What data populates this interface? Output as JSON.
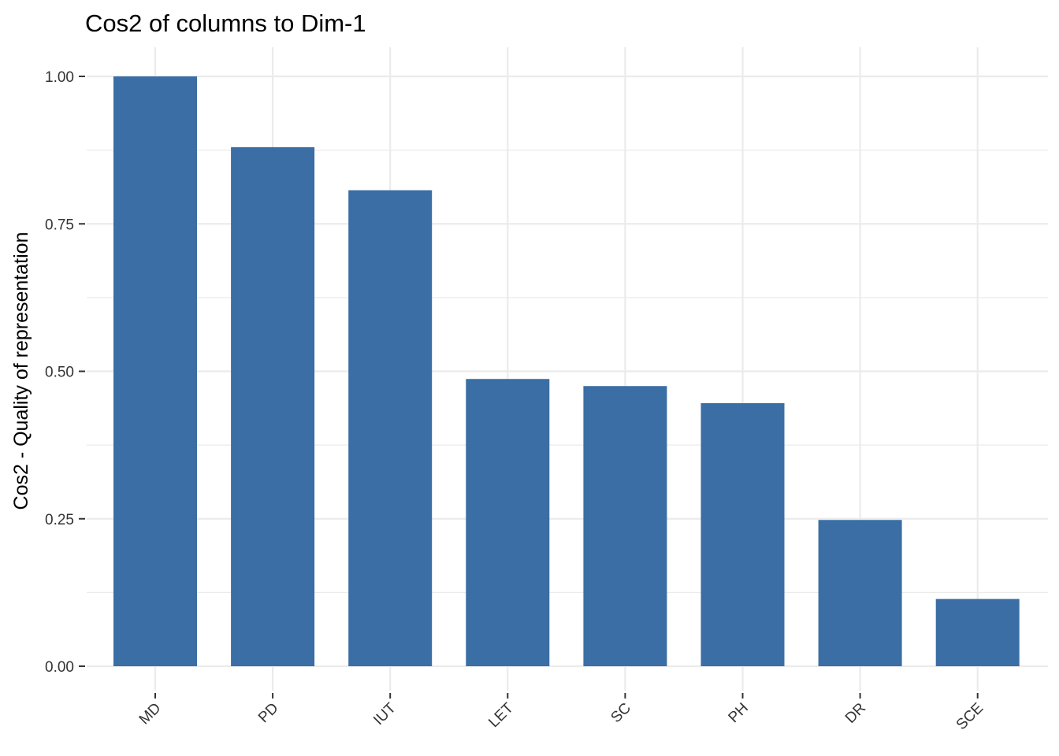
{
  "chart_data": {
    "type": "bar",
    "title": "Cos2 of columns to Dim-1",
    "xlabel": "",
    "ylabel": "Cos2 - Quality of representation",
    "categories": [
      "MD",
      "PD",
      "IUT",
      "LET",
      "SC",
      "PH",
      "DR",
      "SCE"
    ],
    "values": [
      1.0,
      0.88,
      0.807,
      0.487,
      0.475,
      0.446,
      0.248,
      0.114
    ],
    "ylim": [
      0,
      1.0
    ],
    "yticks": [
      "0.00",
      "0.25",
      "0.50",
      "0.75",
      "1.00"
    ],
    "grid": true,
    "legend": "none",
    "bar_color": "#3A6EA5",
    "grid_color": "#EBEBEB"
  }
}
